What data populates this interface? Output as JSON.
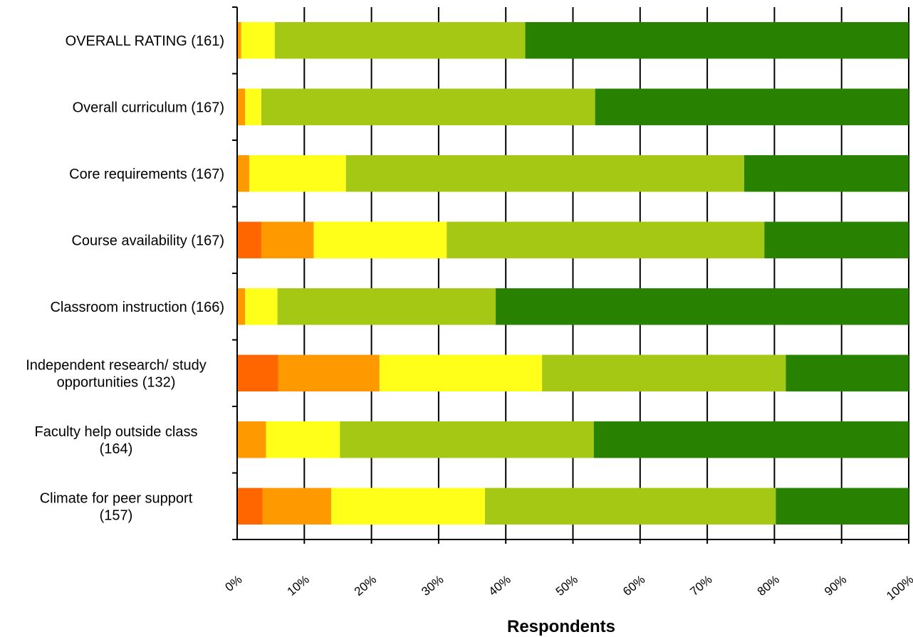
{
  "chart_data": {
    "type": "bar",
    "orientation": "horizontal",
    "stacked": true,
    "title": "",
    "xlabel": "Respondents",
    "ylabel": "",
    "xlim": [
      0,
      100
    ],
    "grid": true,
    "legend": "none",
    "categories": [
      [
        "OVERALL RATING (161)"
      ],
      [
        "Overall curriculum (167)"
      ],
      [
        "Core requirements (167)"
      ],
      [
        "Course availability (167)"
      ],
      [
        "Classroom instruction (166)"
      ],
      [
        "Independent research/ study",
        "opportunities (132)"
      ],
      [
        "Faculty help outside class",
        "(164)"
      ],
      [
        "Climate for peer support",
        "(157)"
      ]
    ],
    "series": [
      {
        "color": "#FF6600",
        "values": [
          0,
          0,
          0,
          3.6,
          0,
          6.1,
          0,
          3.8
        ]
      },
      {
        "color": "#FF9900",
        "values": [
          0.6,
          1.2,
          1.8,
          7.8,
          1.2,
          15.1,
          4.3,
          10.2
        ]
      },
      {
        "color": "#FFFF1A",
        "values": [
          5.0,
          2.4,
          14.4,
          19.8,
          4.8,
          24.2,
          11.0,
          22.9
        ]
      },
      {
        "color": "#A4C814",
        "values": [
          37.3,
          49.7,
          59.3,
          47.3,
          32.5,
          36.3,
          37.8,
          43.3
        ]
      },
      {
        "color": "#288200",
        "values": [
          57.1,
          46.7,
          24.5,
          21.5,
          61.5,
          18.3,
          46.9,
          19.8
        ]
      }
    ],
    "x_ticks": [
      "0%",
      "10%",
      "20%",
      "30%",
      "40%",
      "50%",
      "60%",
      "70%",
      "80%",
      "90%",
      "100%"
    ]
  }
}
